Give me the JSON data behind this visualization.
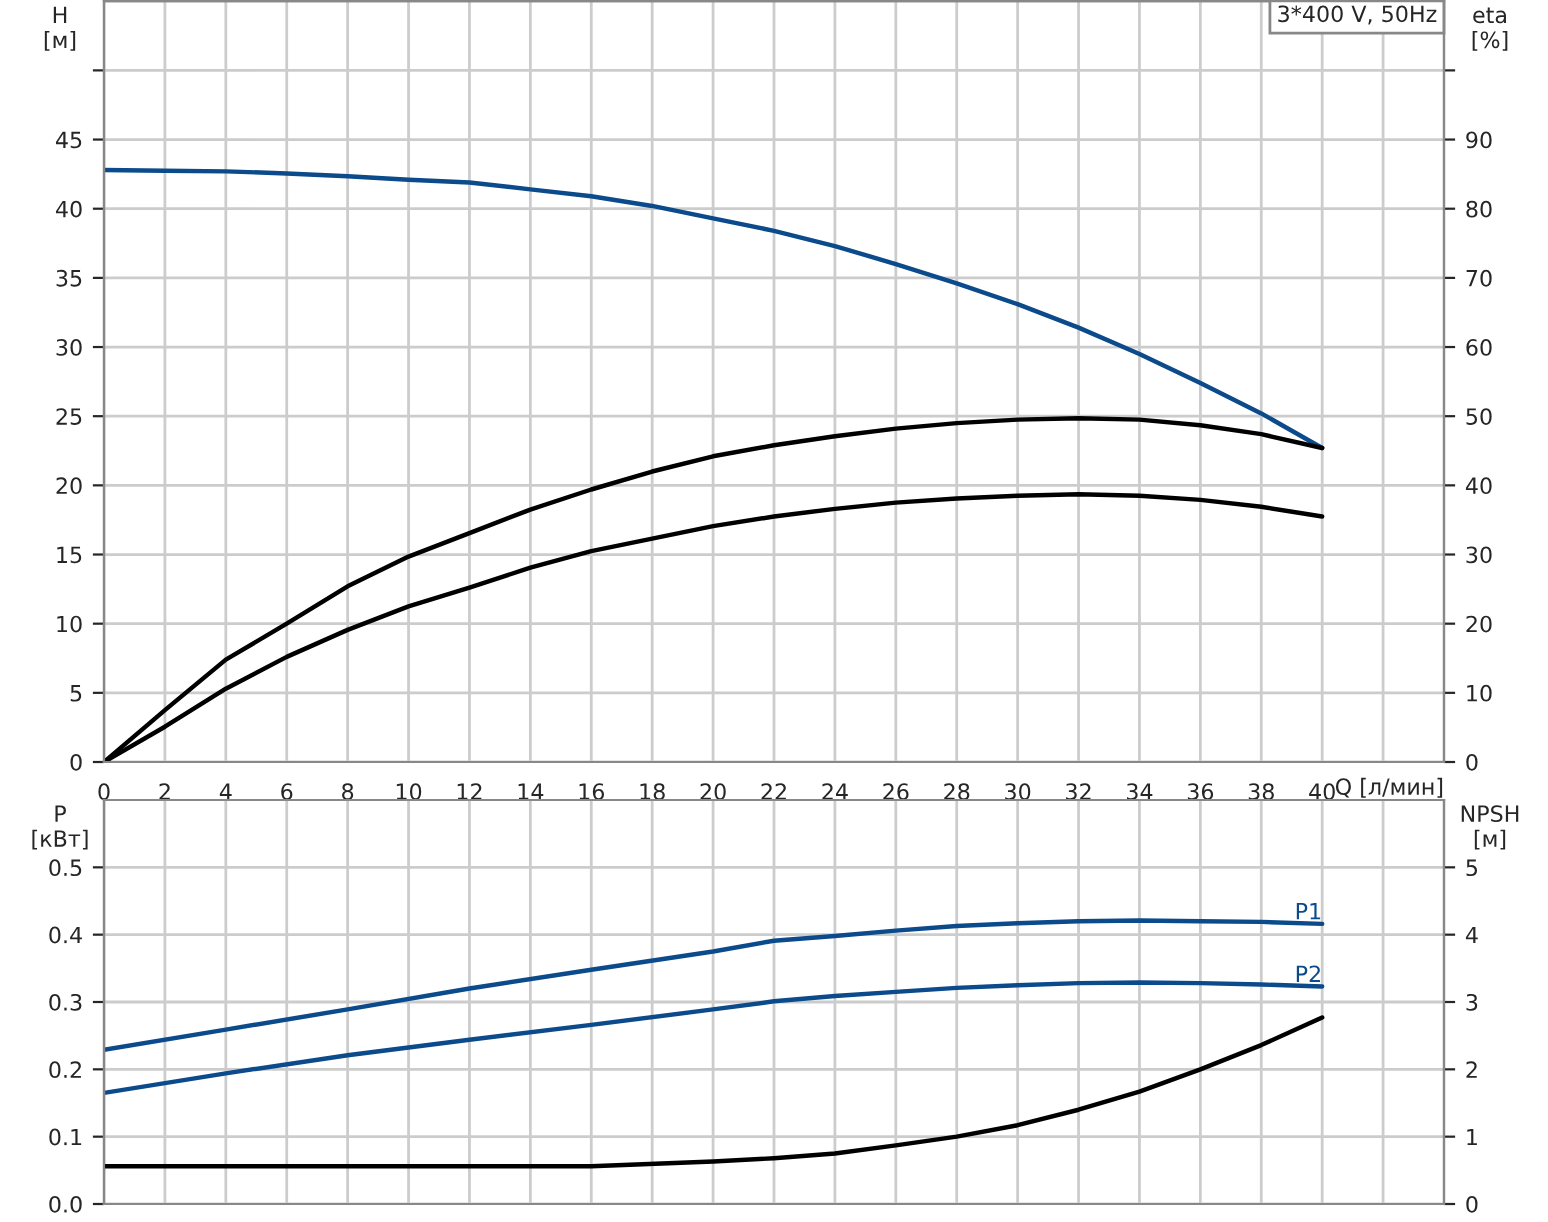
{
  "chart_data": [
    {
      "type": "line",
      "xlabel": "Q [л/мин]",
      "ylabel": "H\n[м]",
      "y2label": "eta\n[%]",
      "annotations": [
        "3*400 V, 50Hz"
      ],
      "grid": true,
      "legend": false,
      "xlim": [
        0,
        44
      ],
      "xticks": [
        0,
        2,
        4,
        6,
        8,
        10,
        12,
        14,
        16,
        18,
        20,
        22,
        24,
        26,
        28,
        30,
        32,
        34,
        36,
        38,
        40,
        {
          "value": 42,
          "label": null
        }
      ],
      "ylim": [
        0,
        55
      ],
      "yticks": [
        0,
        5,
        10,
        15,
        20,
        25,
        30,
        35,
        40,
        45,
        {
          "value": 50,
          "label": null
        }
      ],
      "y2lim": [
        0,
        110
      ],
      "y2ticks": [
        0,
        10,
        20,
        30,
        40,
        50,
        60,
        70,
        80,
        90,
        {
          "value": 100,
          "label": null
        }
      ],
      "x": [
        0,
        2,
        4,
        6,
        8,
        10,
        12,
        14,
        16,
        18,
        20,
        22,
        24,
        26,
        28,
        30,
        32,
        34,
        36,
        38,
        40
      ],
      "series": [
        {
          "color": "#0b4a8b",
          "axis": "y",
          "values": [
            42.8,
            42.75,
            42.7,
            42.55,
            42.35,
            42.1,
            41.9,
            41.4,
            40.9,
            40.2,
            39.3,
            38.4,
            37.3,
            36.0,
            34.6,
            33.1,
            31.4,
            29.5,
            27.4,
            25.2,
            22.7
          ]
        },
        {
          "color": "#000000",
          "axis": "y2",
          "values": [
            0,
            7.5,
            14.8,
            20.0,
            25.4,
            29.7,
            33.1,
            36.5,
            39.4,
            42.0,
            44.2,
            45.8,
            47.1,
            48.2,
            49.0,
            49.5,
            49.7,
            49.5,
            48.7,
            47.4,
            45.4
          ]
        },
        {
          "color": "#000000",
          "axis": "y2",
          "values": [
            0,
            5.1,
            10.6,
            15.2,
            19.1,
            22.5,
            25.2,
            28.1,
            30.5,
            32.3,
            34.1,
            35.5,
            36.6,
            37.5,
            38.1,
            38.5,
            38.7,
            38.5,
            37.9,
            36.9,
            35.5
          ]
        }
      ]
    },
    {
      "type": "line",
      "ylabel": "P\n[кВт]",
      "y2label": "NPSH\n[м]",
      "grid": true,
      "legend": false,
      "tick_labels": "y",
      "xlim": [
        0,
        44
      ],
      "xticks": [
        0,
        2,
        4,
        6,
        8,
        10,
        12,
        14,
        16,
        18,
        20,
        22,
        24,
        26,
        28,
        30,
        32,
        34,
        36,
        38,
        40,
        42
      ],
      "ylim": [
        0,
        0.6
      ],
      "yticks": [
        {
          "value": 0,
          "label": "0.0"
        },
        0.1,
        0.2,
        0.3,
        0.4,
        0.5
      ],
      "y2lim": [
        0,
        6
      ],
      "y2ticks": [
        0,
        1,
        2,
        3,
        4,
        5
      ],
      "x": [
        0,
        4,
        8,
        12,
        16,
        20,
        22,
        24,
        26,
        28,
        30,
        32,
        34,
        36,
        38,
        40
      ],
      "series": [
        {
          "name": "P1",
          "color": "#0b4a8b",
          "axis": "y",
          "values": [
            0.229,
            0.259,
            0.289,
            0.32,
            0.348,
            0.375,
            0.391,
            0.398,
            0.406,
            0.413,
            0.417,
            0.42,
            0.421,
            0.42,
            0.419,
            0.416
          ]
        },
        {
          "name": "P2",
          "color": "#0b4a8b",
          "axis": "y",
          "values": [
            0.165,
            0.194,
            0.221,
            0.244,
            0.266,
            0.289,
            0.301,
            0.309,
            0.315,
            0.321,
            0.325,
            0.328,
            0.329,
            0.328,
            0.326,
            0.323
          ]
        },
        {
          "color": "#000000",
          "axis": "y2",
          "values": [
            0.56,
            0.56,
            0.56,
            0.56,
            0.56,
            0.63,
            0.68,
            0.75,
            0.87,
            1.0,
            1.17,
            1.4,
            1.67,
            2.0,
            2.36,
            2.77
          ]
        }
      ]
    }
  ]
}
